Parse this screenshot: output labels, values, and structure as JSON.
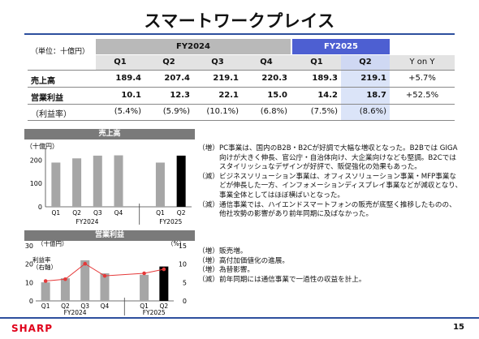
{
  "title": "スマートワークプレイス",
  "table": {
    "unit": "（単位：十億円）",
    "fy2024_label": "FY2024",
    "fy2025_label": "FY2025",
    "col_headers": [
      "Q1",
      "Q2",
      "Q3",
      "Q4",
      "Q1",
      "Q2",
      "Y on Y"
    ],
    "rows": [
      {
        "label": "売上高",
        "values": [
          "189.4",
          "207.4",
          "219.1",
          "220.3",
          "189.3",
          "219.1",
          "+5.7%"
        ]
      },
      {
        "label": "営業利益",
        "values": [
          "10.1",
          "12.3",
          "22.1",
          "15.0",
          "14.2",
          "18.7",
          "+52.5%"
        ]
      },
      {
        "label": "（利益率）",
        "values": [
          "(5.4%)",
          "(5.9%)",
          "(10.1%)",
          "(6.8%)",
          "(7.5%)",
          "(8.6%)",
          ""
        ]
      }
    ]
  },
  "sales_section": {
    "band_label": "売上高",
    "bullets": [
      {
        "tag": "（増）",
        "text": "PC事業は、国内のB2B・B2Cが好調で大幅な増収となった。B2Bでは GIGA向けが大きく伸長、官公庁・自治体向け、大企業向けなども堅調。B2Cではスタイリッシュなデザインが好評で、販促強化の効果もあった。"
      },
      {
        "tag": "（減）",
        "text": "ビジネスソリューション事業は、オフィスソリューション事業・MFP事業などが伸長した一方、インフォメーションディスプレイ事業などが減収となり、事業全体としてはほぼ横ばいとなった。"
      },
      {
        "tag": "（減）",
        "text": "通信事業では、ハイエンドスマートフォンの販売が底堅く推移したものの、他社攻勢の影響があり前年同期に及ばなかった。"
      }
    ]
  },
  "profit_section": {
    "band_label": "営業利益",
    "bullets": [
      {
        "tag": "（増）",
        "text": "販売増。"
      },
      {
        "tag": "（増）",
        "text": "高付加価値化の進展。"
      },
      {
        "tag": "（増）",
        "text": "為替影響。"
      },
      {
        "tag": "（減）",
        "text": "前年同期には通信事業で一過性の収益を計上。"
      }
    ]
  },
  "chart_data": [
    {
      "type": "bar",
      "unit_label": "（十億円）",
      "categories": [
        "Q1",
        "Q2",
        "Q3",
        "Q4",
        "Q1",
        "Q2"
      ],
      "groups": [
        "FY2024",
        "FY2025"
      ],
      "values": [
        189.4,
        207.4,
        219.1,
        220.3,
        189.3,
        219.1
      ],
      "highlight_index": 5,
      "ylim": [
        0,
        250
      ],
      "yticks": [
        "0",
        "100",
        "200"
      ],
      "colors": {
        "bar": "#a6a6a6",
        "highlight": "#000000"
      }
    },
    {
      "type": "bar+line",
      "unit_left": "（十億円）",
      "unit_right": "（%）",
      "annotation": "利益率\n（右軸）",
      "categories": [
        "Q1",
        "Q2",
        "Q3",
        "Q4",
        "Q1",
        "Q2"
      ],
      "groups": [
        "FY2024",
        "FY2025"
      ],
      "bar_values": [
        10.1,
        12.3,
        22.1,
        15.0,
        14.2,
        18.7
      ],
      "line_values": [
        5.4,
        5.9,
        10.1,
        6.8,
        7.5,
        8.6
      ],
      "highlight_index": 5,
      "ylim_left": [
        0,
        30
      ],
      "ylim_right": [
        0,
        15
      ],
      "yticks_left": [
        "0",
        "10",
        "20",
        "30"
      ],
      "yticks_right": [
        "0",
        "5",
        "10",
        "15"
      ],
      "colors": {
        "bar": "#a6a6a6",
        "highlight": "#000000",
        "line": "#e53939"
      }
    }
  ],
  "footer": {
    "logo": "SHARP",
    "page": "15"
  }
}
